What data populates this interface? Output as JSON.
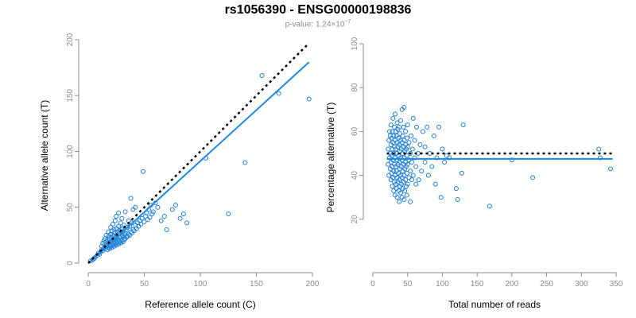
{
  "title": "rs1056390 - ENSG00000198836",
  "subtitle": {
    "prefix": "p-value: 1.24×10",
    "exponent": "−7"
  },
  "colors": {
    "points": "#1f7fd6",
    "fit": "#1f88e5",
    "reference": "#000000",
    "axis": "#8c8c8c"
  },
  "chart_data": [
    {
      "type": "scatter",
      "title": "",
      "xlabel": "Reference allele count (C)",
      "ylabel": "Alternative allele count (T)",
      "xlim": [
        0,
        200
      ],
      "ylim": [
        0,
        200
      ],
      "xticks": [
        0,
        50,
        100,
        150,
        200
      ],
      "yticks": [
        0,
        50,
        100,
        150,
        200
      ],
      "grid": false,
      "reference_line": {
        "style": "dotted",
        "points": [
          [
            0,
            0
          ],
          [
            197,
            197
          ]
        ]
      },
      "fit_line": {
        "style": "solid",
        "points": [
          [
            0,
            0
          ],
          [
            197,
            180
          ]
        ]
      },
      "points": [
        [
          2,
          2
        ],
        [
          4,
          3
        ],
        [
          5,
          4
        ],
        [
          6,
          5
        ],
        [
          8,
          7
        ],
        [
          9,
          9
        ],
        [
          10,
          8
        ],
        [
          11,
          10
        ],
        [
          12,
          12
        ],
        [
          12,
          15
        ],
        [
          13,
          11
        ],
        [
          13,
          18
        ],
        [
          14,
          14
        ],
        [
          14,
          20
        ],
        [
          15,
          13
        ],
        [
          15,
          17
        ],
        [
          15,
          22
        ],
        [
          16,
          15
        ],
        [
          16,
          19
        ],
        [
          16,
          25
        ],
        [
          17,
          12
        ],
        [
          17,
          16
        ],
        [
          17,
          21
        ],
        [
          18,
          14
        ],
        [
          18,
          18
        ],
        [
          18,
          24
        ],
        [
          18,
          28
        ],
        [
          19,
          13
        ],
        [
          19,
          17
        ],
        [
          19,
          22
        ],
        [
          20,
          15
        ],
        [
          20,
          19
        ],
        [
          20,
          26
        ],
        [
          20,
          32
        ],
        [
          21,
          14
        ],
        [
          21,
          18
        ],
        [
          21,
          23
        ],
        [
          21,
          29
        ],
        [
          22,
          16
        ],
        [
          22,
          20
        ],
        [
          22,
          25
        ],
        [
          22,
          35
        ],
        [
          23,
          15
        ],
        [
          23,
          19
        ],
        [
          23,
          24
        ],
        [
          23,
          30
        ],
        [
          24,
          17
        ],
        [
          24,
          21
        ],
        [
          24,
          27
        ],
        [
          24,
          38
        ],
        [
          25,
          16
        ],
        [
          25,
          20
        ],
        [
          25,
          25
        ],
        [
          25,
          31
        ],
        [
          25,
          42
        ],
        [
          26,
          18
        ],
        [
          26,
          22
        ],
        [
          26,
          28
        ],
        [
          27,
          17
        ],
        [
          27,
          21
        ],
        [
          27,
          26
        ],
        [
          27,
          33
        ],
        [
          27,
          45
        ],
        [
          28,
          19
        ],
        [
          28,
          23
        ],
        [
          28,
          29
        ],
        [
          29,
          18
        ],
        [
          29,
          24
        ],
        [
          29,
          30
        ],
        [
          29,
          36
        ],
        [
          30,
          20
        ],
        [
          30,
          25
        ],
        [
          30,
          31
        ],
        [
          30,
          40
        ],
        [
          31,
          19
        ],
        [
          31,
          24
        ],
        [
          31,
          28
        ],
        [
          32,
          21
        ],
        [
          32,
          26
        ],
        [
          32,
          34
        ],
        [
          33,
          22
        ],
        [
          33,
          27
        ],
        [
          33,
          46
        ],
        [
          34,
          23
        ],
        [
          34,
          30
        ],
        [
          35,
          24
        ],
        [
          35,
          32
        ],
        [
          36,
          26
        ],
        [
          36,
          38
        ],
        [
          37,
          25
        ],
        [
          37,
          33
        ],
        [
          38,
          28
        ],
        [
          38,
          58
        ],
        [
          39,
          27
        ],
        [
          39,
          36
        ],
        [
          40,
          30
        ],
        [
          40,
          48
        ],
        [
          41,
          29
        ],
        [
          42,
          34
        ],
        [
          42,
          50
        ],
        [
          43,
          31
        ],
        [
          44,
          36
        ],
        [
          45,
          33
        ],
        [
          46,
          38
        ],
        [
          47,
          35
        ],
        [
          48,
          40
        ],
        [
          49,
          82
        ],
        [
          50,
          37
        ],
        [
          51,
          42
        ],
        [
          52,
          45
        ],
        [
          53,
          39
        ],
        [
          54,
          48
        ],
        [
          55,
          41
        ],
        [
          56,
          52
        ],
        [
          57,
          44
        ],
        [
          58,
          46
        ],
        [
          60,
          54
        ],
        [
          62,
          50
        ],
        [
          65,
          38
        ],
        [
          68,
          42
        ],
        [
          70,
          30
        ],
        [
          75,
          48
        ],
        [
          78,
          52
        ],
        [
          82,
          40
        ],
        [
          85,
          44
        ],
        [
          88,
          36
        ],
        [
          105,
          94
        ],
        [
          125,
          44
        ],
        [
          140,
          90
        ],
        [
          155,
          168
        ],
        [
          170,
          152
        ],
        [
          197,
          147
        ]
      ]
    },
    {
      "type": "scatter",
      "title": "",
      "xlabel": "Total number of reads",
      "ylabel": "Percentage alternative (T)",
      "xlim": [
        0,
        350
      ],
      "ylim": [
        0,
        100
      ],
      "xticks": [
        0,
        50,
        100,
        150,
        200,
        250,
        300,
        350
      ],
      "yticks": [
        20,
        40,
        60,
        80,
        100
      ],
      "grid": false,
      "reference_line": {
        "style": "dotted",
        "points": [
          [
            20,
            50
          ],
          [
            345,
            50
          ]
        ]
      },
      "fit_line": {
        "style": "solid",
        "points": [
          [
            20,
            47.5
          ],
          [
            345,
            47.5
          ]
        ]
      },
      "points": [
        [
          22,
          45
        ],
        [
          22,
          52
        ],
        [
          23,
          40
        ],
        [
          23,
          56
        ],
        [
          24,
          48
        ],
        [
          24,
          60
        ],
        [
          25,
          43
        ],
        [
          25,
          50
        ],
        [
          25,
          58
        ],
        [
          26,
          38
        ],
        [
          26,
          46
        ],
        [
          26,
          54
        ],
        [
          26,
          63
        ],
        [
          27,
          41
        ],
        [
          27,
          49
        ],
        [
          27,
          57
        ],
        [
          28,
          35
        ],
        [
          28,
          44
        ],
        [
          28,
          52
        ],
        [
          28,
          60
        ],
        [
          29,
          39
        ],
        [
          29,
          47
        ],
        [
          29,
          55
        ],
        [
          29,
          66
        ],
        [
          30,
          33
        ],
        [
          30,
          42
        ],
        [
          30,
          50
        ],
        [
          30,
          58
        ],
        [
          31,
          37
        ],
        [
          31,
          45
        ],
        [
          31,
          53
        ],
        [
          31,
          62
        ],
        [
          32,
          31
        ],
        [
          32,
          40
        ],
        [
          32,
          48
        ],
        [
          32,
          56
        ],
        [
          32,
          68
        ],
        [
          33,
          36
        ],
        [
          33,
          44
        ],
        [
          33,
          52
        ],
        [
          33,
          60
        ],
        [
          34,
          34
        ],
        [
          34,
          42
        ],
        [
          34,
          50
        ],
        [
          34,
          58
        ],
        [
          35,
          30
        ],
        [
          35,
          39
        ],
        [
          35,
          47
        ],
        [
          35,
          55
        ],
        [
          35,
          64
        ],
        [
          36,
          37
        ],
        [
          36,
          45
        ],
        [
          36,
          53
        ],
        [
          36,
          61
        ],
        [
          37,
          33
        ],
        [
          37,
          41
        ],
        [
          37,
          49
        ],
        [
          37,
          57
        ],
        [
          38,
          28
        ],
        [
          38,
          38
        ],
        [
          38,
          46
        ],
        [
          38,
          54
        ],
        [
          38,
          62
        ],
        [
          39,
          35
        ],
        [
          39,
          43
        ],
        [
          39,
          51
        ],
        [
          39,
          59
        ],
        [
          40,
          32
        ],
        [
          40,
          40
        ],
        [
          40,
          48
        ],
        [
          40,
          56
        ],
        [
          40,
          65
        ],
        [
          41,
          36
        ],
        [
          41,
          44
        ],
        [
          41,
          52
        ],
        [
          42,
          30
        ],
        [
          42,
          39
        ],
        [
          42,
          47
        ],
        [
          42,
          55
        ],
        [
          42,
          70
        ],
        [
          43,
          34
        ],
        [
          43,
          42
        ],
        [
          43,
          50
        ],
        [
          43,
          58
        ],
        [
          44,
          37
        ],
        [
          44,
          45
        ],
        [
          44,
          53
        ],
        [
          44,
          62
        ],
        [
          45,
          29
        ],
        [
          45,
          40
        ],
        [
          45,
          48
        ],
        [
          45,
          56
        ],
        [
          45,
          71
        ],
        [
          46,
          33
        ],
        [
          46,
          43
        ],
        [
          46,
          51
        ],
        [
          47,
          38
        ],
        [
          47,
          46
        ],
        [
          47,
          54
        ],
        [
          47,
          60
        ],
        [
          48,
          35
        ],
        [
          48,
          44
        ],
        [
          48,
          52
        ],
        [
          49,
          31
        ],
        [
          49,
          41
        ],
        [
          49,
          49
        ],
        [
          49,
          57
        ],
        [
          50,
          36
        ],
        [
          50,
          45
        ],
        [
          50,
          53
        ],
        [
          50,
          63
        ],
        [
          52,
          39
        ],
        [
          52,
          47
        ],
        [
          52,
          55
        ],
        [
          54,
          28
        ],
        [
          54,
          42
        ],
        [
          54,
          50
        ],
        [
          55,
          58
        ],
        [
          56,
          38
        ],
        [
          56,
          46
        ],
        [
          57,
          52
        ],
        [
          58,
          40
        ],
        [
          58,
          66
        ],
        [
          60,
          48
        ],
        [
          60,
          56
        ],
        [
          62,
          36
        ],
        [
          62,
          44
        ],
        [
          63,
          62
        ],
        [
          65,
          50
        ],
        [
          66,
          38
        ],
        [
          68,
          54
        ],
        [
          70,
          42
        ],
        [
          72,
          60
        ],
        [
          75,
          46
        ],
        [
          75,
          53
        ],
        [
          78,
          62
        ],
        [
          80,
          40
        ],
        [
          82,
          50
        ],
        [
          85,
          44
        ],
        [
          88,
          58
        ],
        [
          90,
          36
        ],
        [
          92,
          48
        ],
        [
          95,
          62
        ],
        [
          98,
          30
        ],
        [
          100,
          52
        ],
        [
          103,
          46
        ],
        [
          106,
          49
        ],
        [
          110,
          48
        ],
        [
          120,
          34
        ],
        [
          122,
          29
        ],
        [
          128,
          41
        ],
        [
          130,
          63
        ],
        [
          168,
          26
        ],
        [
          200,
          47
        ],
        [
          230,
          39
        ],
        [
          325,
          52
        ],
        [
          327,
          48
        ],
        [
          342,
          43
        ]
      ]
    }
  ]
}
